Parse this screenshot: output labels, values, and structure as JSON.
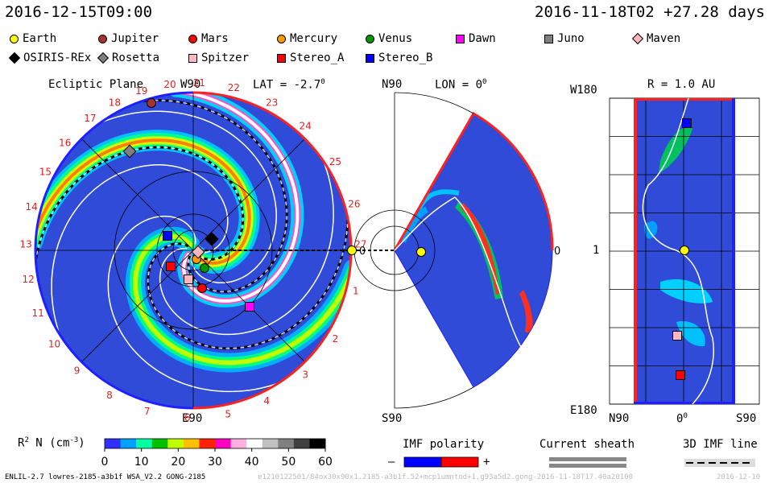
{
  "header": {
    "left": "2016-12-15T09:00",
    "right": "2016-11-18T02 +27.28 days"
  },
  "legend": [
    {
      "name": "Earth",
      "shape": "circle",
      "color": "#ffff00"
    },
    {
      "name": "Jupiter",
      "shape": "circle",
      "color": "#a83232"
    },
    {
      "name": "Mars",
      "shape": "circle",
      "color": "#ff0000"
    },
    {
      "name": "Mercury",
      "shape": "circle",
      "color": "#ff9900"
    },
    {
      "name": "Venus",
      "shape": "circle",
      "color": "#009900"
    },
    {
      "name": "Dawn",
      "shape": "square",
      "color": "#ff00ff"
    },
    {
      "name": "Juno",
      "shape": "square",
      "color": "#808080"
    },
    {
      "name": "Maven",
      "shape": "diamond",
      "color": "#ffb6c1"
    },
    {
      "name": "OSIRIS-REx",
      "shape": "diamond",
      "color": "#000000"
    },
    {
      "name": "Rosetta",
      "shape": "diamond",
      "color": "#808080"
    },
    {
      "name": "Spitzer",
      "shape": "square",
      "color": "#ffb6c1"
    },
    {
      "name": "Stereo_A",
      "shape": "square",
      "color": "#ff0000"
    },
    {
      "name": "Stereo_B",
      "shape": "square",
      "color": "#0000ff"
    }
  ],
  "ecliptic": {
    "title": "Ecliptic Plane",
    "top_label": "W90",
    "lat_label": "LAT = -2.7",
    "deg": "0",
    "bottom_label": "E90",
    "zero_label": "0",
    "ticks": [
      "18",
      "19",
      "20",
      "21",
      "22",
      "23",
      "24",
      "25",
      "26",
      "27",
      "17",
      "16",
      "15",
      "14",
      "13",
      "12",
      "11",
      "10",
      "9",
      "8",
      "7",
      "6",
      "5",
      "4",
      "3",
      "2",
      "1"
    ]
  },
  "meridional": {
    "top_label": "N90",
    "lon_label": "LON = 0",
    "deg": "0",
    "bottom_label": "S90",
    "zero_label": "0"
  },
  "map": {
    "title": "R = 1.0 AU",
    "top_left": "W180",
    "mid_left": "1",
    "bottom_left": "E180",
    "x_left": "N90",
    "x_mid": "0",
    "x_deg": "0",
    "x_right": "S90"
  },
  "colorbar": {
    "label": "R",
    "label_sup": "2",
    "label_rest": " N (cm",
    "label_sup2": "-3",
    "label_end": ")",
    "ticks": [
      "0",
      "10",
      "20",
      "30",
      "40",
      "50",
      "60"
    ],
    "colors": [
      "#3030ff",
      "#00a0ff",
      "#00ffa0",
      "#00c000",
      "#c0ff00",
      "#ffc000",
      "#ff2000",
      "#ff00c0",
      "#ffb0e0",
      "#ffffff",
      "#c0c0c0",
      "#808080",
      "#404040",
      "#000000"
    ]
  },
  "imf_polarity": {
    "title": "IMF polarity",
    "minus": "–",
    "plus": "+"
  },
  "current_sheath": {
    "title": "Current sheath"
  },
  "imf_line": {
    "title": "3D IMF line"
  },
  "footer": {
    "left": "ENLIL-2.7 lowres-2185-a3b1f WSA_V2.2 GONG-2185",
    "mid": "e1210122501/84ox30x90x1.2185-a3b1f.52+mcp1umntod+1.g93a5d2.gong-2016-11-18T17.40a20100",
    "right": "2016-12-10"
  },
  "chart_data": {
    "type": "heatmap",
    "title": "",
    "quantity": "R2 N (cm-3)",
    "color_range": [
      0,
      60
    ],
    "panels": [
      "Ecliptic Plane",
      "LON = 0",
      "R = 1.0 AU"
    ],
    "bodies_ecliptic": [
      {
        "name": "Earth",
        "r_au": 1.0,
        "angle_deg": 0
      },
      {
        "name": "Jupiter"
      },
      {
        "name": "Mars"
      },
      {
        "name": "Mercury"
      },
      {
        "name": "Venus"
      },
      {
        "name": "Dawn"
      },
      {
        "name": "Juno"
      },
      {
        "name": "OSIRIS-REx"
      },
      {
        "name": "Rosetta"
      },
      {
        "name": "Spitzer"
      },
      {
        "name": "Stereo_A"
      },
      {
        "name": "Stereo_B"
      }
    ]
  }
}
